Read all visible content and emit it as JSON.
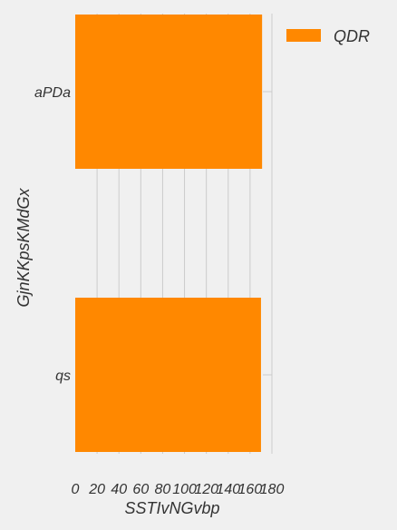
{
  "chart_data": {
    "type": "bar",
    "orientation": "horizontal",
    "categories": [
      "aPDa",
      "qs"
    ],
    "series": [
      {
        "name": "QDR",
        "values": [
          171,
          170
        ],
        "color": "#ff8800"
      }
    ],
    "xlabel": "SSTIvNGvbp",
    "ylabel": "GjnKKpsKMdGx",
    "xlim": [
      0,
      180
    ],
    "xticks": [
      0,
      20,
      40,
      60,
      80,
      100,
      120,
      140,
      160,
      180
    ],
    "grid": true,
    "legend_position": "top-right",
    "background": "#f0f0f0"
  }
}
